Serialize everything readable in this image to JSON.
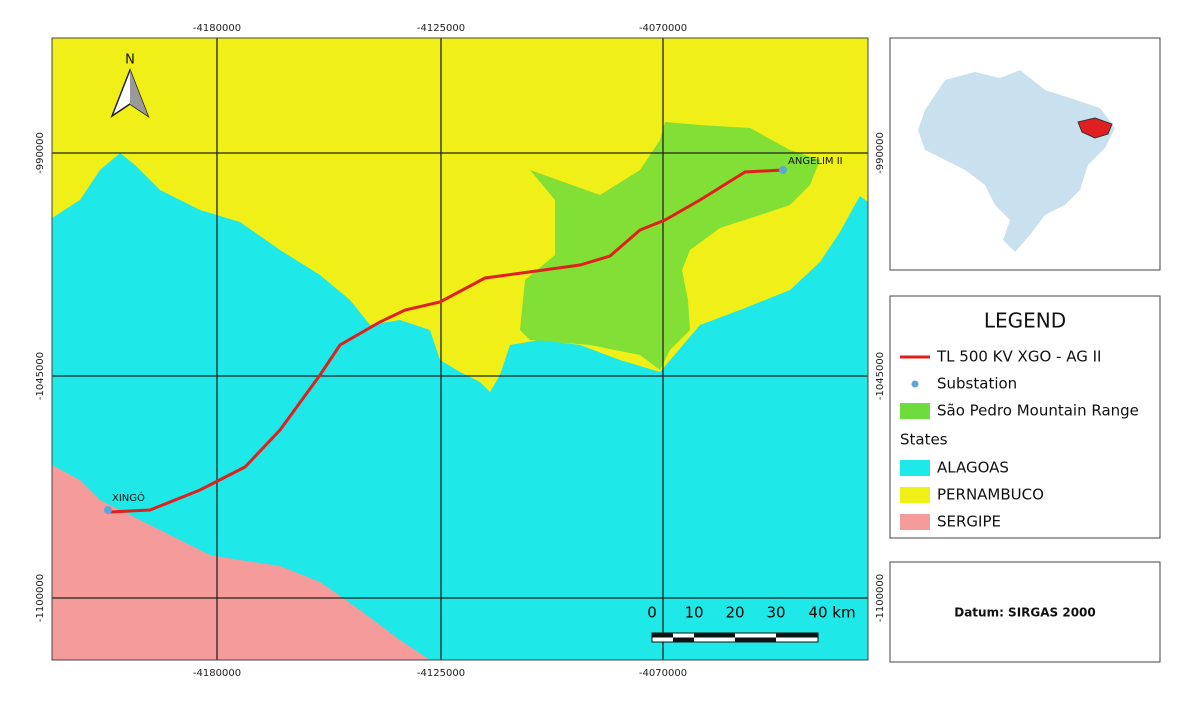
{
  "map": {
    "north_label": "N",
    "grid_x_labels": [
      "-4180000",
      "-4125000",
      "-4070000"
    ],
    "grid_y_labels": [
      "-990000",
      "-1045000",
      "-1100000"
    ],
    "places": [
      "ANGELIM II",
      "XINGÓ"
    ],
    "scale_bar_labels": [
      "0",
      "10",
      "20",
      "30",
      "40 km"
    ]
  },
  "legend": {
    "title": "LEGEND",
    "items": [
      "TL 500 KV XGO - AG II",
      "Substation",
      "São Pedro Mountain Range"
    ],
    "group_title": "States",
    "states": [
      "ALAGOAS",
      "PERNAMBUCO",
      "SERGIPE"
    ]
  },
  "datum": "Datum: SIRGAS 2000"
}
